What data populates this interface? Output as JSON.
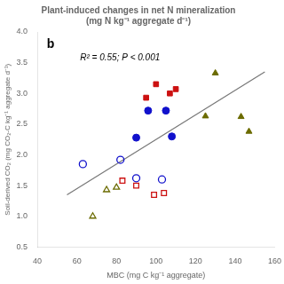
{
  "chart_data": {
    "type": "scatter",
    "title": [
      "Plant-induced changes in net N mineralization",
      "(mg N kg⁻¹ aggregate d⁻¹)"
    ],
    "xlabel": "MBC (mg C kg⁻¹ aggregate)",
    "ylabel": "Soil-derived CO₂ (mg CO₂-C kg⁻¹ aggregate d⁻¹)",
    "annotations": [
      "b",
      "R² = 0.55; P < 0.001"
    ],
    "xlim": [
      40,
      160
    ],
    "ylim": [
      0.5,
      4.0
    ],
    "xticks": [
      40,
      60,
      80,
      100,
      120,
      140,
      160
    ],
    "yticks": [
      0.5,
      {
        "value": 1.0,
        "label": "1.0"
      },
      1.5,
      {
        "value": 2.0,
        "label": "2.0"
      },
      2.5,
      {
        "value": 3.0,
        "label": "3.0"
      },
      3.5,
      {
        "value": 4.0,
        "label": "4.0"
      }
    ],
    "grid": false,
    "series": [
      {
        "type": "line",
        "color": "#777777",
        "x": [
          55,
          155
        ],
        "values": [
          1.35,
          3.35
        ]
      },
      {
        "marker": "circle",
        "color": "#1111cc",
        "x": [
          90,
          96,
          105,
          108
        ],
        "values": [
          2.28,
          2.72,
          2.72,
          2.3
        ]
      },
      {
        "marker": "square",
        "color": "#cc1111",
        "x": [
          95,
          100,
          107,
          110
        ],
        "values": [
          2.93,
          3.15,
          3.0,
          3.07
        ]
      },
      {
        "marker": "triangle",
        "color": "#6b6b00",
        "x": [
          125,
          130,
          143,
          147
        ],
        "values": [
          2.63,
          3.33,
          2.62,
          2.38
        ]
      },
      {
        "marker": "open_circle",
        "color": "#1111cc",
        "x": [
          63,
          82,
          90,
          103
        ],
        "values": [
          1.85,
          1.92,
          1.62,
          1.6
        ]
      },
      {
        "marker": "open_square",
        "color": "#cc1111",
        "x": [
          83,
          90,
          99,
          104
        ],
        "values": [
          1.58,
          1.5,
          1.35,
          1.38
        ]
      },
      {
        "marker": "open_triangle",
        "color": "#6b6b00",
        "x": [
          68,
          75,
          80
        ],
        "values": [
          1.0,
          1.43,
          1.47
        ]
      }
    ]
  }
}
